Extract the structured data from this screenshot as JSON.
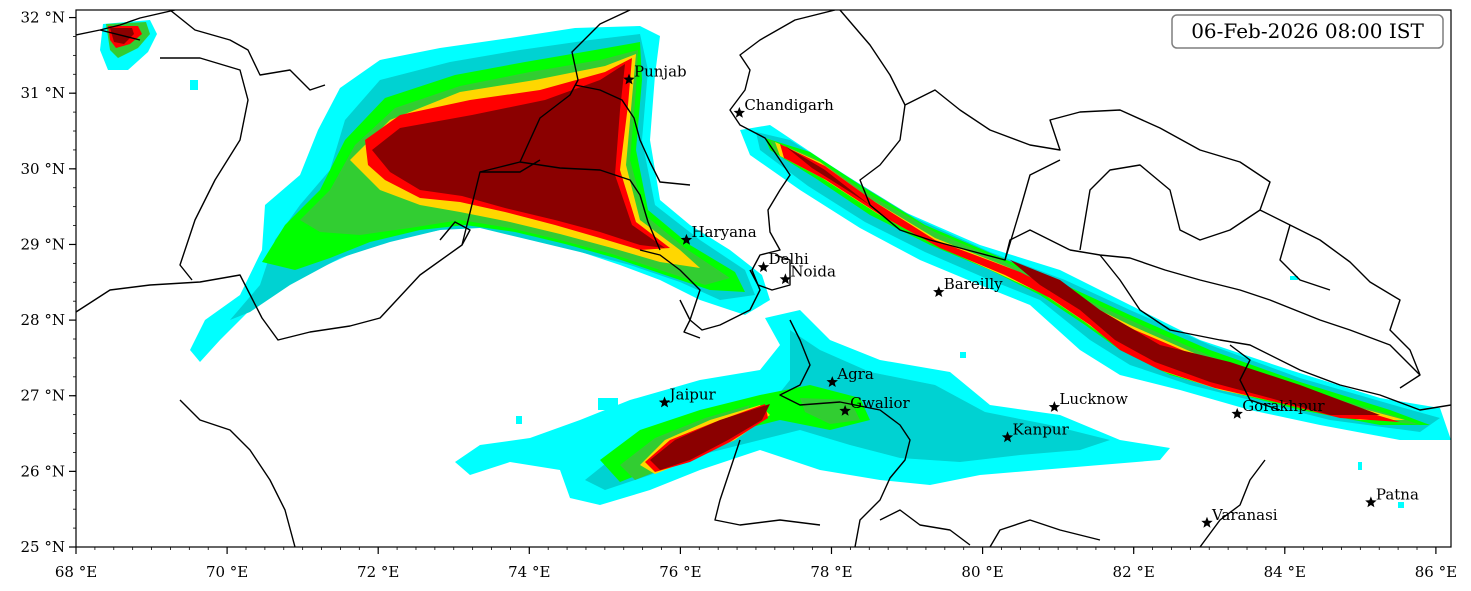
{
  "timestamp": "06-Feb-2026 08:00 IST",
  "colors": {
    "level1": "#00ffff",
    "level2": "#00d2d2",
    "level3": "#00ff00",
    "level4": "#32cd32",
    "level5": "#ffd700",
    "level6": "#ff0000",
    "level7": "#8b0000",
    "border": "#000000"
  },
  "extent": {
    "lon": [
      68,
      86.2
    ],
    "lat": [
      25,
      32.1
    ]
  },
  "lon_ticks": [
    {
      "value": 68,
      "label": "68 °E"
    },
    {
      "value": 70,
      "label": "70 °E"
    },
    {
      "value": 72,
      "label": "72 °E"
    },
    {
      "value": 74,
      "label": "74 °E"
    },
    {
      "value": 76,
      "label": "76 °E"
    },
    {
      "value": 78,
      "label": "78 °E"
    },
    {
      "value": 80,
      "label": "80 °E"
    },
    {
      "value": 82,
      "label": "82 °E"
    },
    {
      "value": 84,
      "label": "84 °E"
    },
    {
      "value": 86,
      "label": "86 °E"
    }
  ],
  "lat_ticks": [
    {
      "value": 25,
      "label": "25 °N"
    },
    {
      "value": 26,
      "label": "26 °N"
    },
    {
      "value": 27,
      "label": "27 °N"
    },
    {
      "value": 28,
      "label": "28 °N"
    },
    {
      "value": 29,
      "label": "29 °N"
    },
    {
      "value": 30,
      "label": "30 °N"
    },
    {
      "value": 31,
      "label": "31 °N"
    },
    {
      "value": 32,
      "label": "32 °N"
    }
  ],
  "cities": [
    {
      "name": "Punjab",
      "lon": 75.32,
      "lat": 31.18
    },
    {
      "name": "Chandigarh",
      "lon": 76.78,
      "lat": 30.74
    },
    {
      "name": "Haryana",
      "lon": 76.08,
      "lat": 29.06
    },
    {
      "name": "Delhi",
      "lon": 77.1,
      "lat": 28.7
    },
    {
      "name": "Noida",
      "lon": 77.39,
      "lat": 28.54
    },
    {
      "name": "Bareilly",
      "lon": 79.42,
      "lat": 28.37
    },
    {
      "name": "Agra",
      "lon": 78.01,
      "lat": 27.18
    },
    {
      "name": "Jaipur",
      "lon": 75.79,
      "lat": 26.91
    },
    {
      "name": "Gwalior",
      "lon": 78.18,
      "lat": 26.8
    },
    {
      "name": "Lucknow",
      "lon": 80.95,
      "lat": 26.85
    },
    {
      "name": "Kanpur",
      "lon": 80.33,
      "lat": 26.45
    },
    {
      "name": "Gorakhpur",
      "lon": 83.37,
      "lat": 26.76
    },
    {
      "name": "Patna",
      "lon": 85.14,
      "lat": 25.59
    },
    {
      "name": "Varanasi",
      "lon": 82.97,
      "lat": 25.32
    }
  ]
}
